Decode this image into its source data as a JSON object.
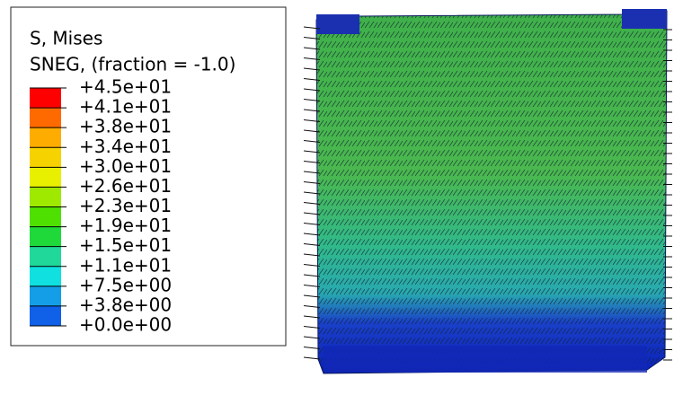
{
  "legend": {
    "title": "S, Mises",
    "subtitle": "SNEG, (fraction = -1.0)",
    "labels": [
      "+4.5e+01",
      "+4.1e+01",
      "+3.8e+01",
      "+3.4e+01",
      "+3.0e+01",
      "+2.6e+01",
      "+2.3e+01",
      "+1.9e+01",
      "+1.5e+01",
      "+1.1e+01",
      "+7.5e+00",
      "+3.8e+00",
      "+0.0e+00"
    ],
    "colors": [
      "#ff0000",
      "#ff6a00",
      "#ffac00",
      "#f6d200",
      "#e8f000",
      "#9fe800",
      "#4ee000",
      "#1fd83a",
      "#1fd89a",
      "#10e0e0",
      "#149ee8",
      "#1060e8",
      "#0018e0"
    ]
  }
}
